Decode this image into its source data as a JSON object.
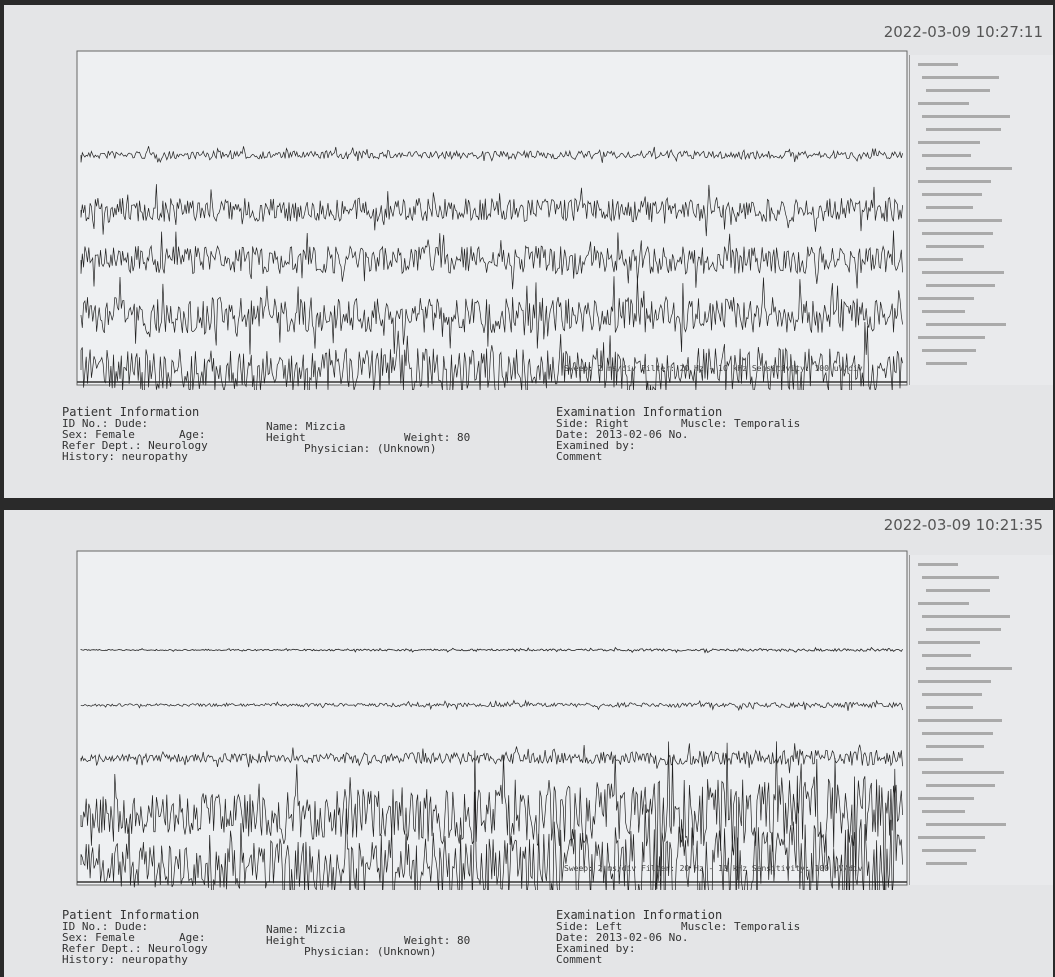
{
  "screens": [
    {
      "timestamp": "2022-03-09 10:27:11",
      "patient": {
        "title": "Patient Information",
        "id": "ID No.: Dude:",
        "sex": "Sex: Female",
        "age": "Age:",
        "dept": "Refer Dept.: Neurology",
        "history": "History: neuropathy",
        "name": "Name: Mizcia",
        "height": "Height",
        "weight": "Weight: 80",
        "physician": "Physician: (Unknown)"
      },
      "exam": {
        "title": "Examination Information",
        "side": "Side: Right",
        "muscle": "Muscle: Temporalis",
        "date": "Date: 2013-02-06 No.",
        "examined": "Examined by:",
        "comment": "Comment"
      },
      "status": "Sweep: 2 ms/div  Filter: 20 Hz - 10 kHz  Sensitivity: 100 uV/div"
    },
    {
      "timestamp": "2022-03-09 10:21:35",
      "patient": {
        "title": "Patient Information",
        "id": "ID No.: Dude:",
        "sex": "Sex: Female",
        "age": "Age:",
        "dept": "Refer Dept.: Neurology",
        "history": "History: neuropathy",
        "name": "Name: Mizcia",
        "height": "Height",
        "weight": "Weight: 80",
        "physician": "Physician: (Unknown)"
      },
      "exam": {
        "title": "Examination Information",
        "side": "Side: Left",
        "muscle": "Muscle: Temporalis",
        "date": "Date: 2013-02-06 No.",
        "examined": "Examined by:",
        "comment": "Comment"
      },
      "status": "Sweep: 2 ms/div  Filter: 20 Hz - 10 kHz  Sensitivity: 100 uV/div"
    }
  ]
}
